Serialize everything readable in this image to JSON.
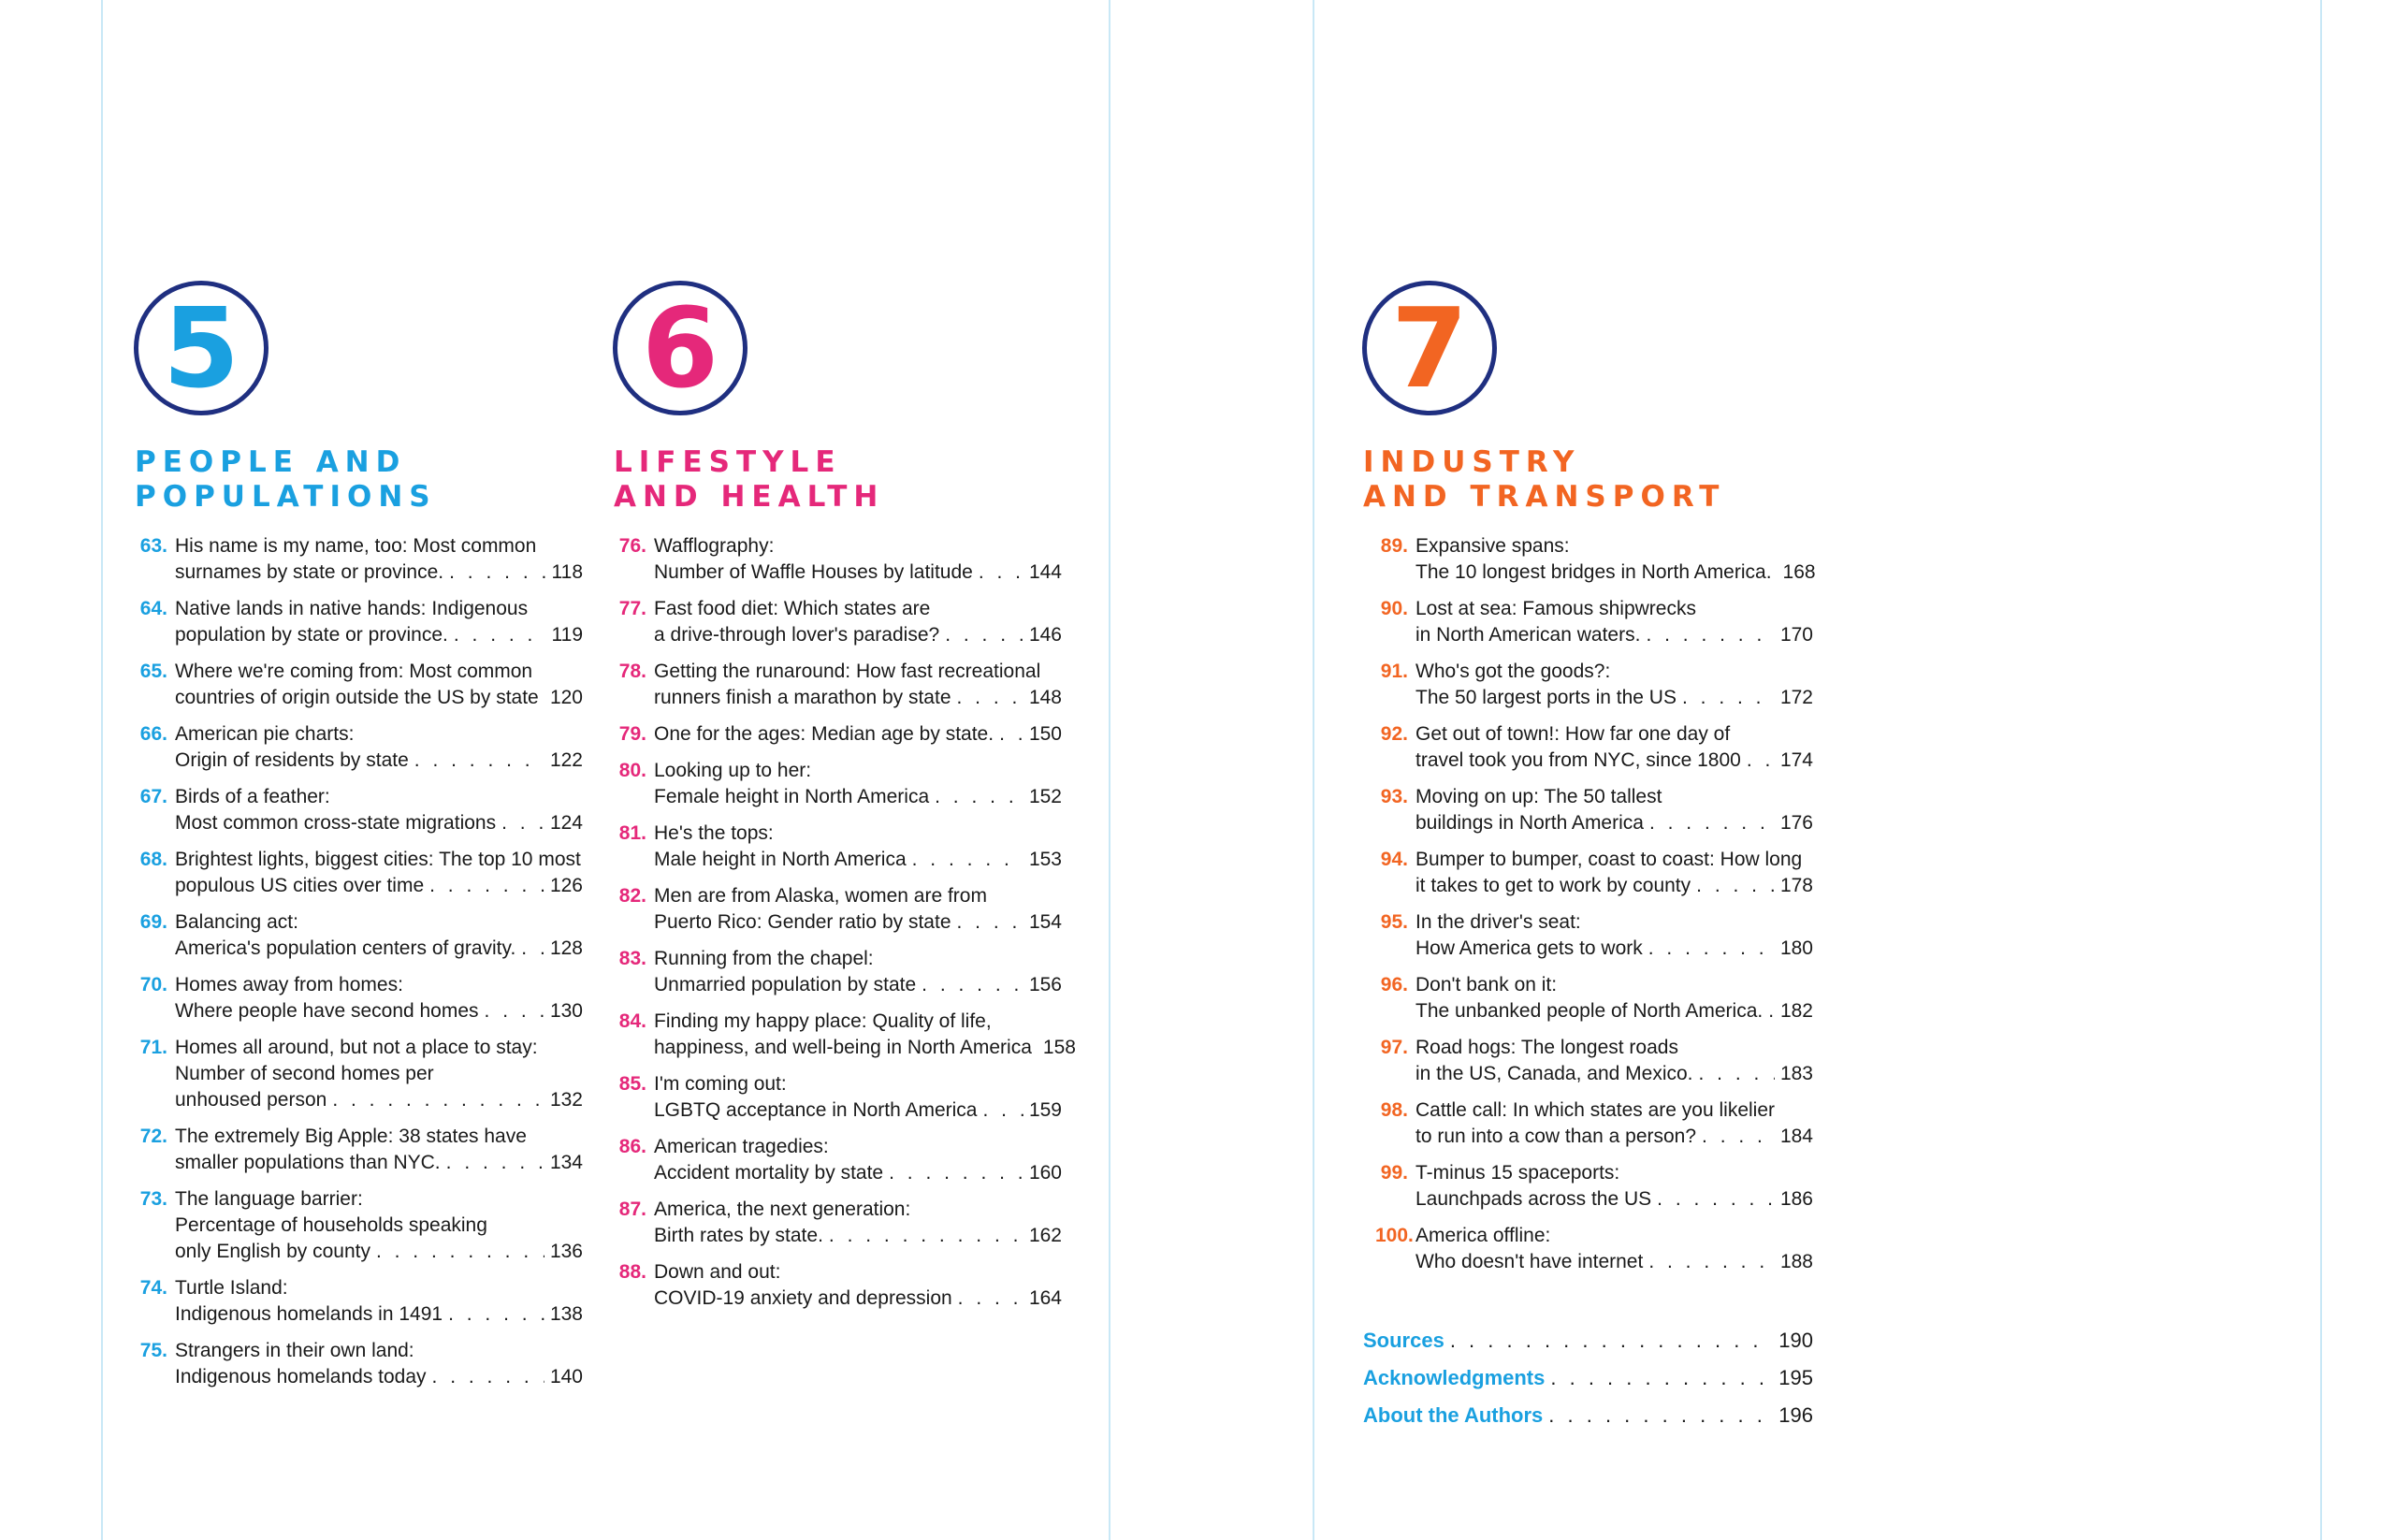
{
  "colors": {
    "blue": "#1aa0e0",
    "pink": "#e5287a",
    "orange": "#f26522",
    "navy": "#1f2f80"
  },
  "chapters": [
    {
      "number": "5",
      "title_lines": [
        "People and",
        "Populations"
      ],
      "entries": [
        {
          "num": "63.",
          "lines": [
            "His name is my name, too: Most common",
            "surnames by state or province."
          ],
          "page": "118"
        },
        {
          "num": "64.",
          "lines": [
            "Native lands in native hands: Indigenous",
            "population by state or province."
          ],
          "page": "119"
        },
        {
          "num": "65.",
          "lines": [
            "Where we're coming from: Most common",
            "countries of origin outside the US by state"
          ],
          "page": "120"
        },
        {
          "num": "66.",
          "lines": [
            "American pie charts:",
            "Origin of residents by state"
          ],
          "page": "122"
        },
        {
          "num": "67.",
          "lines": [
            "Birds of a feather:",
            "Most common cross-state migrations"
          ],
          "page": "124"
        },
        {
          "num": "68.",
          "lines": [
            "Brightest lights, biggest cities: The top 10 most",
            "populous US cities over time"
          ],
          "page": "126"
        },
        {
          "num": "69.",
          "lines": [
            "Balancing act:",
            "America's population centers of gravity."
          ],
          "page": "128"
        },
        {
          "num": "70.",
          "lines": [
            "Homes away from homes:",
            "Where people have second homes"
          ],
          "page": "130"
        },
        {
          "num": "71.",
          "lines": [
            "Homes all around, but not a place to stay:",
            "Number of second homes per",
            "unhoused person"
          ],
          "page": "132"
        },
        {
          "num": "72.",
          "lines": [
            "The extremely Big Apple: 38 states have",
            "smaller populations than NYC."
          ],
          "page": "134"
        },
        {
          "num": "73.",
          "lines": [
            "The language barrier:",
            "Percentage of households speaking",
            "only English by county"
          ],
          "page": "136"
        },
        {
          "num": "74.",
          "lines": [
            "Turtle Island:",
            "Indigenous homelands in 1491"
          ],
          "page": "138"
        },
        {
          "num": "75.",
          "lines": [
            "Strangers in their own land:",
            "Indigenous homelands today"
          ],
          "page": "140"
        }
      ]
    },
    {
      "number": "6",
      "title_lines": [
        "Lifestyle",
        "and Health"
      ],
      "entries": [
        {
          "num": "76.",
          "lines": [
            "Wafflography:",
            "Number of Waffle Houses by latitude"
          ],
          "page": "144"
        },
        {
          "num": "77.",
          "lines": [
            "Fast food diet: Which states are",
            "a drive-through lover's paradise?"
          ],
          "page": "146"
        },
        {
          "num": "78.",
          "lines": [
            "Getting the runaround: How fast recreational",
            "runners finish a marathon by state"
          ],
          "page": "148"
        },
        {
          "num": "79.",
          "lines": [
            "One for the ages: Median age by state."
          ],
          "page": "150"
        },
        {
          "num": "80.",
          "lines": [
            "Looking up to her:",
            "Female height in North America"
          ],
          "page": "152"
        },
        {
          "num": "81.",
          "lines": [
            "He's the tops:",
            "Male height in North America"
          ],
          "page": "153"
        },
        {
          "num": "82.",
          "lines": [
            "Men are from Alaska, women are from",
            "Puerto Rico: Gender ratio by state"
          ],
          "page": "154"
        },
        {
          "num": "83.",
          "lines": [
            "Running from the chapel:",
            "Unmarried population by state"
          ],
          "page": "156"
        },
        {
          "num": "84.",
          "lines": [
            "Finding my happy place: Quality of life,",
            "happiness, and well-being in North America"
          ],
          "page": "158"
        },
        {
          "num": "85.",
          "lines": [
            "I'm coming out:",
            "LGBTQ acceptance in North America"
          ],
          "page": "159"
        },
        {
          "num": "86.",
          "lines": [
            "American tragedies:",
            "Accident mortality by state"
          ],
          "page": "160"
        },
        {
          "num": "87.",
          "lines": [
            "America, the next generation:",
            "Birth rates by state."
          ],
          "page": "162"
        },
        {
          "num": "88.",
          "lines": [
            "Down and out:",
            "COVID-19 anxiety and depression"
          ],
          "page": "164"
        }
      ]
    },
    {
      "number": "7",
      "title_lines": [
        "Industry",
        "and Transport"
      ],
      "entries": [
        {
          "num": "89.",
          "lines": [
            "Expansive spans:",
            "The 10 longest bridges in North America."
          ],
          "page": "168"
        },
        {
          "num": "90.",
          "lines": [
            "Lost at sea: Famous shipwrecks",
            "in North American waters."
          ],
          "page": "170"
        },
        {
          "num": "91.",
          "lines": [
            "Who's got the goods?:",
            "The 50 largest ports in the US"
          ],
          "page": "172"
        },
        {
          "num": "92.",
          "lines": [
            "Get out of town!: How far one day of",
            "travel took you from NYC, since 1800"
          ],
          "page": "174"
        },
        {
          "num": "93.",
          "lines": [
            "Moving on up: The 50 tallest",
            "buildings in North America"
          ],
          "page": "176"
        },
        {
          "num": "94.",
          "lines": [
            "Bumper to bumper, coast to coast: How long",
            "it takes to get to work by county"
          ],
          "page": "178"
        },
        {
          "num": "95.",
          "lines": [
            "In the driver's seat:",
            "How America gets to work"
          ],
          "page": "180"
        },
        {
          "num": "96.",
          "lines": [
            "Don't bank on it:",
            "The unbanked people of North America."
          ],
          "page": "182"
        },
        {
          "num": "97.",
          "lines": [
            "Road hogs: The longest roads",
            "in the US, Canada, and Mexico."
          ],
          "page": "183"
        },
        {
          "num": "98.",
          "lines": [
            "Cattle call: In which states are you likelier",
            "to run into a cow than a person?"
          ],
          "page": "184"
        },
        {
          "num": "99.",
          "lines": [
            "T-minus 15 spaceports:",
            "Launchpads across the US"
          ],
          "page": "186"
        },
        {
          "num": "100.",
          "lines": [
            "America offline:",
            "Who doesn't have internet"
          ],
          "page": "188"
        }
      ]
    }
  ],
  "back_matter": [
    {
      "label": "Sources",
      "page": "190"
    },
    {
      "label": "Acknowledgments",
      "page": "195"
    },
    {
      "label": "About the Authors",
      "page": "196"
    }
  ]
}
